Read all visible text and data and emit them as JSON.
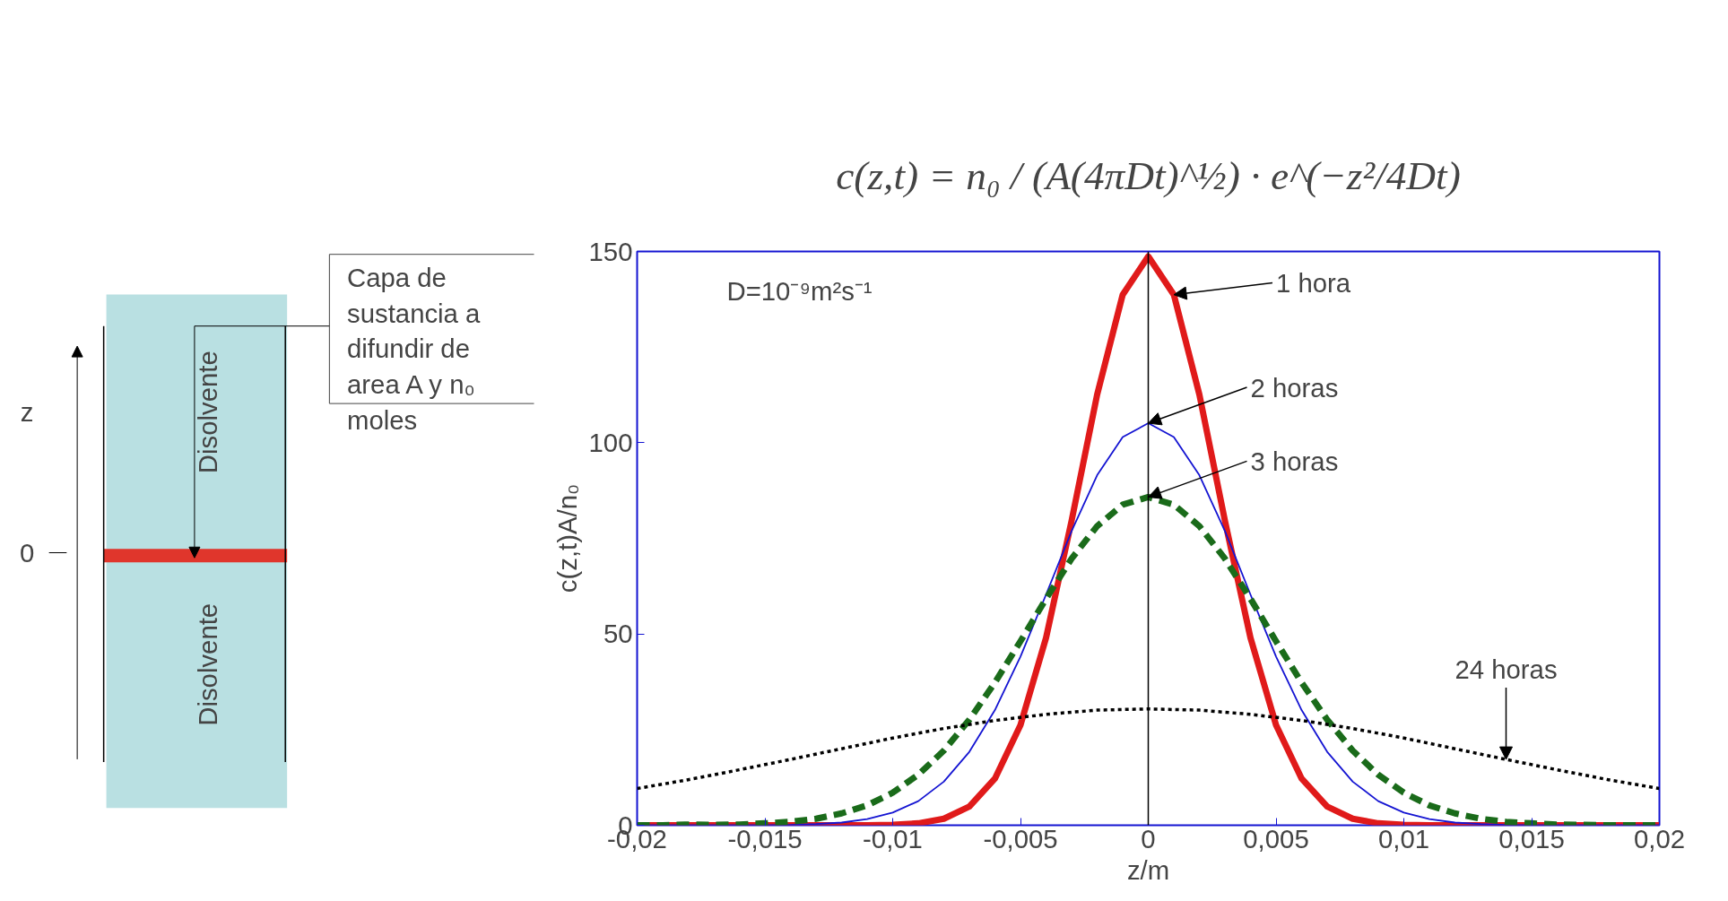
{
  "chart_data": {
    "type": "line",
    "annotations": [
      "c(z,t) = n₀ / (A(4πDt)^½) · e^(−z²/4Dt)",
      "D=10⁻⁹m²s⁻¹",
      {
        "text": "1 hora",
        "x": 0.001,
        "y": 138.7
      },
      {
        "text": "2 horas",
        "x": 0,
        "y": 105.1
      },
      {
        "text": "3 horas",
        "x": 0,
        "y": 85.8
      },
      {
        "text": "24 horas",
        "x": 0.014,
        "y": 17.2
      },
      "Capa de sustancia a difundir de area A y n₀ moles",
      "Disolvente",
      "Disolvente",
      "z",
      "0"
    ],
    "xlabel": "z/m",
    "ylabel": "c(z,t)A/n₀",
    "x": [
      -0.02,
      -0.019,
      -0.018,
      -0.017,
      -0.016,
      -0.015,
      -0.014,
      -0.013,
      -0.012,
      -0.011,
      -0.01,
      -0.009,
      -0.008,
      -0.007,
      -0.006,
      -0.005,
      -0.004,
      -0.003,
      -0.002,
      -0.001,
      0,
      0.001,
      0.002,
      0.003,
      0.004,
      0.005,
      0.006,
      0.007,
      0.008,
      0.009,
      0.01,
      0.011,
      0.012,
      0.013,
      0.014,
      0.015,
      0.016,
      0.017,
      0.018,
      0.019,
      0.02
    ],
    "series": [
      {
        "color": "#e01a1a",
        "line_style": "solid",
        "values": [
          0,
          0,
          0,
          0,
          0,
          0,
          0,
          0,
          0,
          0,
          0.1,
          0.5,
          1.7,
          4.9,
          12.2,
          26.2,
          49.0,
          79.6,
          112.6,
          138.7,
          148.7,
          138.7,
          112.6,
          79.6,
          49.0,
          26.2,
          12.2,
          4.9,
          1.7,
          0.5,
          0.1,
          0,
          0,
          0,
          0,
          0,
          0,
          0,
          0,
          0,
          0
        ]
      },
      {
        "color": "#1414d2",
        "line_style": "solid",
        "values": [
          0,
          0,
          0,
          0,
          0,
          0,
          0.1,
          0.3,
          0.7,
          1.6,
          3.3,
          6.3,
          11.4,
          19.2,
          30.1,
          44.1,
          60.3,
          76.9,
          91.5,
          101.5,
          105.1,
          101.5,
          91.5,
          76.9,
          60.3,
          44.1,
          30.1,
          19.2,
          11.4,
          6.3,
          3.3,
          1.6,
          0.7,
          0.3,
          0.1,
          0,
          0,
          0,
          0,
          0,
          0
        ]
      },
      {
        "color": "#1a6b1a",
        "line_style": "dashed",
        "values": [
          0,
          0,
          0.2,
          0.1,
          0.2,
          0.5,
          0.9,
          1.7,
          3.1,
          5.2,
          8.5,
          13.2,
          19.5,
          27.6,
          37.3,
          48.1,
          59.2,
          69.7,
          78.2,
          83.8,
          85.8,
          83.8,
          78.2,
          69.7,
          59.2,
          48.1,
          37.3,
          27.6,
          19.5,
          13.2,
          8.5,
          5.2,
          3.1,
          1.7,
          0.9,
          0.5,
          0.2,
          0.1,
          0,
          0,
          0
        ]
      },
      {
        "color": "#000000",
        "line_style": "dotted",
        "x": [
          -0.02,
          -0.018,
          -0.016,
          -0.014,
          -0.012,
          -0.01,
          -0.008,
          -0.006,
          -0.004,
          -0.002,
          0,
          0.002,
          0.004,
          0.006,
          0.008,
          0.01,
          0.012,
          0.014,
          0.016,
          0.018,
          0.02
        ],
        "values": [
          9.6,
          11.9,
          14.5,
          17.2,
          20.0,
          22.8,
          25.3,
          27.4,
          29.0,
          30.1,
          30.4,
          30.1,
          29.0,
          27.4,
          25.3,
          22.8,
          20.0,
          17.2,
          14.5,
          11.9,
          9.6
        ]
      }
    ],
    "xlim": [
      -0.02,
      0.02
    ],
    "ylim": [
      0,
      150
    ],
    "xticks": [
      {
        "value": -0.02,
        "label": "-0,02"
      },
      {
        "value": -0.015,
        "label": "-0,015"
      },
      {
        "value": -0.01,
        "label": "-0,01"
      },
      {
        "value": -0.005,
        "label": "-0,005"
      },
      0,
      {
        "value": 0.005,
        "label": "0,005"
      },
      {
        "value": 0.01,
        "label": "0,01"
      },
      {
        "value": 0.015,
        "label": "0,015"
      },
      {
        "value": 0.02,
        "label": "0,02"
      }
    ],
    "yticks": [
      0,
      50,
      100,
      150
    ],
    "ref_lines": [
      {
        "axis": "x",
        "value": 0,
        "color": "#000000"
      }
    ],
    "grid": false
  }
}
